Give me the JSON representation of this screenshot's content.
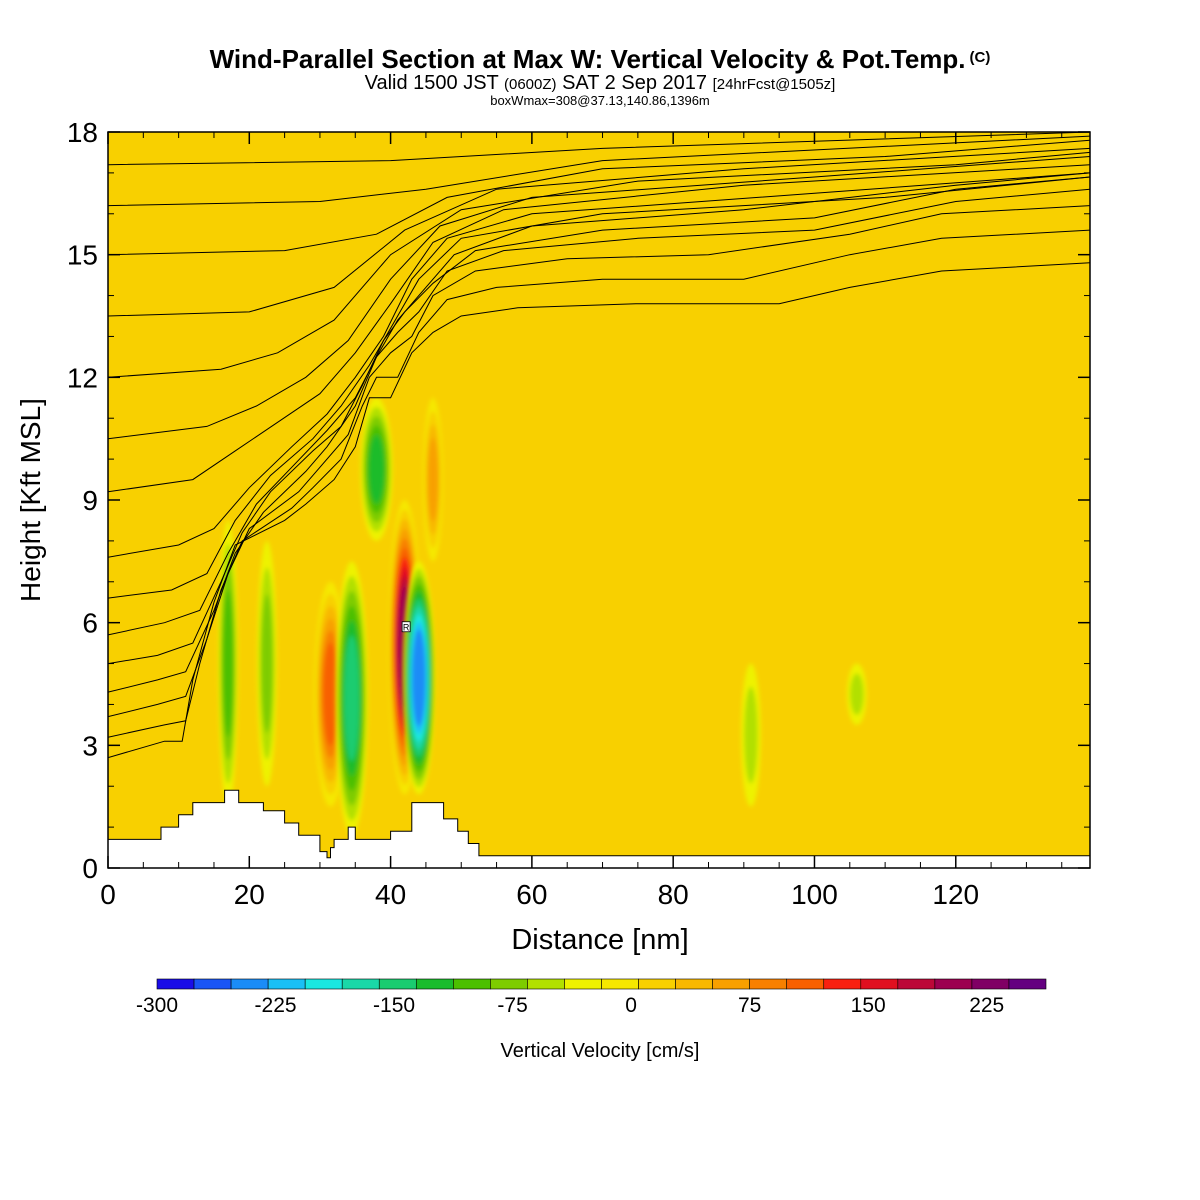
{
  "title": {
    "main": "Wind-Parallel Section at Max W: Vertical Velocity & Pot.Temp.",
    "copyright": "(C)",
    "valid_prefix": "Valid 1500 JST",
    "valid_utc": "(0600Z)",
    "valid_date": "SAT 2 Sep 2017",
    "forecast": "[24hrFcst@1505z]",
    "box": "boxWmax=308@37.13,140.86,1396m"
  },
  "chart_data": {
    "type": "heatmap",
    "xlabel": "Distance [nm]",
    "ylabel": "Height [Kft MSL]",
    "xlim": [
      0,
      139
    ],
    "ylim": [
      0,
      18
    ],
    "x_ticks": [
      "0",
      "20",
      "40",
      "60",
      "80",
      "100",
      "120"
    ],
    "y_ticks": [
      "0",
      "3",
      "6",
      "9",
      "12",
      "15",
      "18"
    ],
    "x_tick_values": [
      0,
      20,
      40,
      60,
      80,
      100,
      120
    ],
    "y_tick_values": [
      0,
      3,
      6,
      9,
      12,
      15,
      18
    ],
    "colorbar": {
      "label": "Vertical Velocity [cm/s]",
      "range": [
        -300,
        262.5
      ],
      "step": 25,
      "tick_labels": [
        "-300",
        "-225",
        "-150",
        "-75",
        "0",
        "75",
        "150",
        "225"
      ],
      "tick_values": [
        -300,
        -225,
        -150,
        -75,
        0,
        75,
        150,
        225
      ],
      "colors": [
        "#1a0de8",
        "#1a55f5",
        "#1a8cf7",
        "#1ac0f5",
        "#1ae8e0",
        "#1ad8a8",
        "#1acc70",
        "#1abc2c",
        "#4cc000",
        "#7ecc00",
        "#b2e000",
        "#eef200",
        "#f6e800",
        "#f8d000",
        "#f8b800",
        "#f8a000",
        "#f88000",
        "#f86000",
        "#f82010",
        "#e01020",
        "#bc0838",
        "#9c0050",
        "#800064",
        "#640080"
      ]
    },
    "max_marker_label": "R",
    "field_background_w": 25,
    "vertical_velocity_features": [
      {
        "kind": "updraft",
        "x": 31.5,
        "z_bottom": 1.5,
        "z_top": 7,
        "peak": 150
      },
      {
        "kind": "updraft",
        "x": 42,
        "z_bottom": 1.8,
        "z_top": 9,
        "peak": 250
      },
      {
        "kind": "updraft",
        "x": 46,
        "z_bottom": 7.5,
        "z_top": 11.5,
        "peak": 100
      },
      {
        "kind": "downdraft",
        "x": 17,
        "z_bottom": 1.5,
        "z_top": 8.5,
        "peak": -100
      },
      {
        "kind": "downdraft",
        "x": 22.5,
        "z_bottom": 2,
        "z_top": 8,
        "peak": -75
      },
      {
        "kind": "downdraft",
        "x": 34.5,
        "z_bottom": 0.8,
        "z_top": 7.5,
        "peak": -150
      },
      {
        "kind": "downdraft",
        "x": 44,
        "z_bottom": 1.8,
        "z_top": 7.5,
        "peak": -250
      },
      {
        "kind": "downdraft",
        "x": 38,
        "z_bottom": 8,
        "z_top": 11.5,
        "peak": -125
      },
      {
        "kind": "downdraft",
        "x": 91,
        "z_bottom": 1.5,
        "z_top": 5,
        "peak": -50
      },
      {
        "kind": "downdraft",
        "x": 106,
        "z_bottom": 3.5,
        "z_top": 5,
        "peak": -40
      }
    ],
    "terrain": [
      [
        0,
        0.7
      ],
      [
        7.5,
        0.7
      ],
      [
        7.5,
        1.0
      ],
      [
        10,
        1.0
      ],
      [
        10,
        1.3
      ],
      [
        12,
        1.3
      ],
      [
        12,
        1.6
      ],
      [
        16.5,
        1.6
      ],
      [
        16.5,
        1.9
      ],
      [
        18.5,
        1.9
      ],
      [
        18.5,
        1.6
      ],
      [
        22,
        1.6
      ],
      [
        22,
        1.4
      ],
      [
        25,
        1.4
      ],
      [
        25,
        1.1
      ],
      [
        27,
        1.1
      ],
      [
        27,
        0.8
      ],
      [
        30,
        0.8
      ],
      [
        30,
        0.4
      ],
      [
        31,
        0.4
      ],
      [
        31,
        0.25
      ],
      [
        31.5,
        0.25
      ],
      [
        31.5,
        0.5
      ],
      [
        32,
        0.5
      ],
      [
        32,
        0.7
      ],
      [
        34,
        0.7
      ],
      [
        34,
        1.0
      ],
      [
        35,
        1.0
      ],
      [
        35,
        0.7
      ],
      [
        40,
        0.7
      ],
      [
        40,
        0.9
      ],
      [
        43,
        0.9
      ],
      [
        43,
        1.6
      ],
      [
        47.5,
        1.6
      ],
      [
        47.5,
        1.2
      ],
      [
        49.5,
        1.2
      ],
      [
        49.5,
        0.9
      ],
      [
        51,
        0.9
      ],
      [
        51,
        0.6
      ],
      [
        52.5,
        0.6
      ],
      [
        52.5,
        0.3
      ],
      [
        55,
        0.3
      ],
      [
        55,
        0.3
      ],
      [
        139,
        0.3
      ]
    ],
    "theta_isentropes": [
      [
        [
          0,
          2.7
        ],
        [
          8,
          3.1
        ],
        [
          10.5,
          3.1
        ],
        [
          12,
          4.6
        ],
        [
          15,
          6.5
        ],
        [
          18,
          7.9
        ],
        [
          25,
          8.5
        ],
        [
          28,
          8.9
        ],
        [
          32,
          9.5
        ],
        [
          35,
          10.3
        ],
        [
          37,
          11.5
        ],
        [
          40,
          11.5
        ],
        [
          43,
          12.6
        ],
        [
          46,
          13.1
        ],
        [
          50,
          13.5
        ],
        [
          58,
          13.7
        ],
        [
          75,
          13.8
        ],
        [
          95,
          13.8
        ],
        [
          105,
          14.2
        ],
        [
          118,
          14.6
        ],
        [
          139,
          14.8
        ]
      ],
      [
        [
          0,
          3.2
        ],
        [
          8,
          3.5
        ],
        [
          11,
          3.6
        ],
        [
          13,
          5.0
        ],
        [
          16,
          6.8
        ],
        [
          19,
          8.0
        ],
        [
          26,
          8.8
        ],
        [
          29,
          9.3
        ],
        [
          33,
          10.0
        ],
        [
          36,
          11.3
        ],
        [
          38,
          12.0
        ],
        [
          41,
          12.0
        ],
        [
          44,
          13.1
        ],
        [
          48,
          13.9
        ],
        [
          55,
          14.2
        ],
        [
          70,
          14.4
        ],
        [
          90,
          14.4
        ],
        [
          105,
          15.0
        ],
        [
          118,
          15.4
        ],
        [
          139,
          15.6
        ]
      ],
      [
        [
          0,
          3.7
        ],
        [
          7,
          4.0
        ],
        [
          11,
          4.2
        ],
        [
          14,
          5.6
        ],
        [
          17,
          7.2
        ],
        [
          20,
          8.3
        ],
        [
          27,
          9.2
        ],
        [
          30,
          9.8
        ],
        [
          34,
          10.6
        ],
        [
          37,
          12.0
        ],
        [
          40,
          12.6
        ],
        [
          43,
          13.0
        ],
        [
          46,
          14.0
        ],
        [
          52,
          14.6
        ],
        [
          65,
          14.9
        ],
        [
          85,
          15.0
        ],
        [
          105,
          15.5
        ],
        [
          118,
          16.0
        ],
        [
          139,
          16.2
        ]
      ],
      [
        [
          0,
          4.3
        ],
        [
          7,
          4.6
        ],
        [
          11,
          4.8
        ],
        [
          15,
          6.3
        ],
        [
          18,
          7.7
        ],
        [
          22,
          8.7
        ],
        [
          28,
          9.7
        ],
        [
          31,
          10.3
        ],
        [
          35,
          11.3
        ],
        [
          38,
          12.5
        ],
        [
          41,
          13.1
        ],
        [
          44,
          13.6
        ],
        [
          48,
          14.6
        ],
        [
          56,
          15.1
        ],
        [
          75,
          15.4
        ],
        [
          100,
          15.6
        ],
        [
          120,
          16.3
        ],
        [
          139,
          16.6
        ]
      ],
      [
        [
          0,
          5.0
        ],
        [
          7,
          5.2
        ],
        [
          12,
          5.5
        ],
        [
          16,
          7.0
        ],
        [
          19,
          8.2
        ],
        [
          23,
          9.2
        ],
        [
          29,
          10.2
        ],
        [
          33,
          10.8
        ],
        [
          36,
          11.8
        ],
        [
          39,
          12.9
        ],
        [
          42,
          13.6
        ],
        [
          46,
          14.3
        ],
        [
          52,
          15.1
        ],
        [
          70,
          15.6
        ],
        [
          100,
          15.9
        ],
        [
          120,
          16.6
        ],
        [
          139,
          16.9
        ]
      ],
      [
        [
          0,
          5.7
        ],
        [
          8,
          6.0
        ],
        [
          13,
          6.3
        ],
        [
          17,
          7.7
        ],
        [
          21,
          8.9
        ],
        [
          26,
          9.8
        ],
        [
          31,
          10.7
        ],
        [
          35,
          11.5
        ],
        [
          38,
          12.5
        ],
        [
          41,
          13.4
        ],
        [
          44,
          14.0
        ],
        [
          49,
          15.0
        ],
        [
          60,
          15.7
        ],
        [
          90,
          16.1
        ],
        [
          120,
          16.7
        ],
        [
          139,
          17.0
        ]
      ],
      [
        [
          0,
          6.6
        ],
        [
          9,
          6.8
        ],
        [
          14,
          7.2
        ],
        [
          18,
          8.5
        ],
        [
          23,
          9.6
        ],
        [
          29,
          10.5
        ],
        [
          33,
          11.3
        ],
        [
          37,
          12.3
        ],
        [
          40,
          13.2
        ],
        [
          44,
          14.4
        ],
        [
          50,
          15.4
        ],
        [
          70,
          16.0
        ],
        [
          110,
          16.4
        ],
        [
          139,
          16.9
        ]
      ],
      [
        [
          0,
          7.6
        ],
        [
          10,
          7.9
        ],
        [
          15,
          8.3
        ],
        [
          20,
          9.3
        ],
        [
          26,
          10.3
        ],
        [
          31,
          11.1
        ],
        [
          35,
          12.0
        ],
        [
          39,
          13.0
        ],
        [
          43,
          14.4
        ],
        [
          48,
          15.4
        ],
        [
          60,
          16.0
        ],
        [
          100,
          16.5
        ],
        [
          139,
          17.0
        ]
      ],
      [
        [
          0,
          9.2
        ],
        [
          12,
          9.5
        ],
        [
          18,
          10.2
        ],
        [
          24,
          10.9
        ],
        [
          30,
          11.6
        ],
        [
          35,
          12.6
        ],
        [
          40,
          13.8
        ],
        [
          46,
          15.3
        ],
        [
          56,
          16.1
        ],
        [
          90,
          16.7
        ],
        [
          139,
          17.2
        ]
      ],
      [
        [
          0,
          10.5
        ],
        [
          14,
          10.8
        ],
        [
          21,
          11.3
        ],
        [
          28,
          12.0
        ],
        [
          34,
          12.9
        ],
        [
          40,
          14.4
        ],
        [
          47,
          15.7
        ],
        [
          60,
          16.4
        ],
        [
          100,
          16.9
        ],
        [
          139,
          17.4
        ]
      ],
      [
        [
          0,
          12.0
        ],
        [
          16,
          12.2
        ],
        [
          24,
          12.6
        ],
        [
          32,
          13.4
        ],
        [
          40,
          15.0
        ],
        [
          50,
          16.1
        ],
        [
          75,
          16.8
        ],
        [
          120,
          17.2
        ],
        [
          139,
          17.5
        ]
      ],
      [
        [
          0,
          13.5
        ],
        [
          20,
          13.6
        ],
        [
          32,
          14.2
        ],
        [
          42,
          15.6
        ],
        [
          55,
          16.6
        ],
        [
          90,
          17.1
        ],
        [
          139,
          17.6
        ]
      ],
      [
        [
          0,
          15.0
        ],
        [
          25,
          15.1
        ],
        [
          38,
          15.5
        ],
        [
          48,
          16.4
        ],
        [
          70,
          17.1
        ],
        [
          110,
          17.4
        ],
        [
          139,
          17.8
        ]
      ],
      [
        [
          0,
          16.2
        ],
        [
          30,
          16.3
        ],
        [
          45,
          16.6
        ],
        [
          70,
          17.3
        ],
        [
          139,
          17.9
        ]
      ],
      [
        [
          0,
          17.2
        ],
        [
          40,
          17.3
        ],
        [
          70,
          17.6
        ],
        [
          139,
          18.0
        ]
      ]
    ]
  }
}
